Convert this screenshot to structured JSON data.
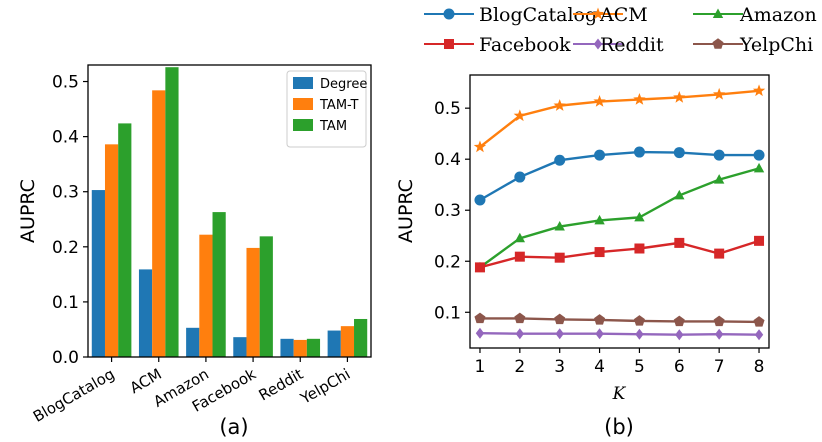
{
  "chart_data": [
    {
      "type": "bar",
      "title": "",
      "caption": "(a)",
      "ylabel": "AUPRC",
      "xlabel": "",
      "ylim": [
        0,
        0.53
      ],
      "yticks": [
        0.0,
        0.1,
        0.2,
        0.3,
        0.4,
        0.5
      ],
      "ytick_labels": [
        "0.0",
        "0.1",
        "0.2",
        "0.3",
        "0.4",
        "0.5"
      ],
      "categories": [
        "BlogCatalog",
        "ACM",
        "Amazon",
        "Facebook",
        "Reddit",
        "YelpChi"
      ],
      "legend_position": "top-right",
      "series": [
        {
          "name": "Degree",
          "color": "#1f77b4",
          "values": [
            0.303,
            0.159,
            0.053,
            0.036,
            0.033,
            0.048
          ]
        },
        {
          "name": "TAM-T",
          "color": "#ff7f0e",
          "values": [
            0.386,
            0.484,
            0.222,
            0.198,
            0.031,
            0.056
          ]
        },
        {
          "name": "TAM",
          "color": "#2ca02c",
          "values": [
            0.424,
            0.526,
            0.263,
            0.219,
            0.033,
            0.069
          ]
        }
      ]
    },
    {
      "type": "line",
      "title": "",
      "caption": "(b)",
      "xlabel": "K",
      "ylabel": "AUPRC",
      "xlim": [
        0.75,
        8.25
      ],
      "ylim": [
        0.03,
        0.565
      ],
      "x": [
        1,
        2,
        3,
        4,
        5,
        6,
        7,
        8
      ],
      "xtick_labels": [
        "1",
        "2",
        "3",
        "4",
        "5",
        "6",
        "7",
        "8"
      ],
      "yticks": [
        0.1,
        0.2,
        0.3,
        0.4,
        0.5
      ],
      "ytick_labels": [
        "0.1",
        "0.2",
        "0.3",
        "0.4",
        "0.5"
      ],
      "legend_position": "top (outside)",
      "series": [
        {
          "name": "BlogCatalog",
          "color": "#1f77b4",
          "marker": "circle",
          "values": [
            0.32,
            0.365,
            0.398,
            0.408,
            0.414,
            0.413,
            0.408,
            0.408
          ]
        },
        {
          "name": "ACM",
          "color": "#ff7f0e",
          "marker": "star",
          "values": [
            0.424,
            0.485,
            0.505,
            0.513,
            0.517,
            0.521,
            0.527,
            0.534
          ]
        },
        {
          "name": "Amazon",
          "color": "#2ca02c",
          "marker": "triangle",
          "values": [
            0.188,
            0.245,
            0.268,
            0.28,
            0.286,
            0.329,
            0.36,
            0.382
          ]
        },
        {
          "name": "Facebook",
          "color": "#d62728",
          "marker": "square",
          "values": [
            0.188,
            0.209,
            0.207,
            0.218,
            0.225,
            0.236,
            0.215,
            0.24
          ]
        },
        {
          "name": "Reddit",
          "color": "#9467bd",
          "marker": "diamond",
          "values": [
            0.059,
            0.058,
            0.058,
            0.058,
            0.057,
            0.056,
            0.057,
            0.056
          ]
        },
        {
          "name": "YelpChi",
          "color": "#8c564b",
          "marker": "pentagon",
          "values": [
            0.088,
            0.088,
            0.086,
            0.085,
            0.083,
            0.082,
            0.082,
            0.081
          ]
        }
      ]
    }
  ]
}
